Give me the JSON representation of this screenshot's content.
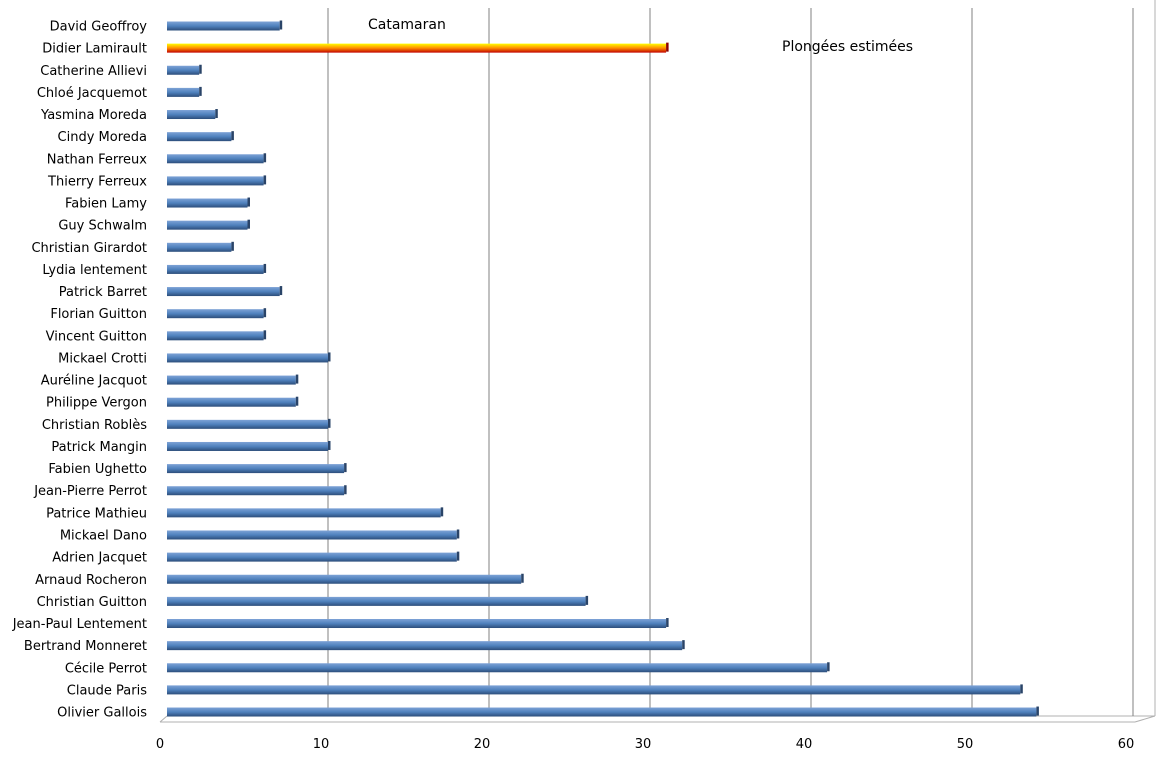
{
  "chart_data": {
    "type": "bar",
    "orientation": "horizontal",
    "categories": [
      "David Geoffroy",
      "Didier Lamirault",
      "Catherine Allievi",
      "Chloé Jacquemot",
      "Yasmina Moreda",
      "Cindy Moreda",
      "Nathan Ferreux",
      "Thierry Ferreux",
      "Fabien Lamy",
      "Guy Schwalm",
      "Christian Girardot",
      "Lydia lentement",
      "Patrick Barret",
      "Florian Guitton",
      "Vincent Guitton",
      "Mickael Crotti",
      "Auréline Jacquot",
      "Philippe Vergon",
      "Christian Roblès",
      "Patrick Mangin",
      "Fabien Ughetto",
      "Jean-Pierre Perrot",
      "Patrice Mathieu",
      "Mickael Dano",
      "Adrien Jacquet",
      "Arnaud Rocheron",
      "Christian Guitton",
      "Jean-Paul Lentement",
      "Bertrand Monneret",
      "Cécile Perrot",
      "Claude Paris",
      "Olivier Gallois"
    ],
    "values": [
      7,
      31,
      2,
      2,
      3,
      4,
      6,
      6,
      5,
      5,
      4,
      6,
      7,
      6,
      6,
      10,
      8,
      8,
      10,
      10,
      11,
      11,
      17,
      18,
      18,
      22,
      26,
      31,
      32,
      41,
      53,
      54
    ],
    "highlighted": [
      "Didier Lamirault"
    ],
    "xlim": [
      0,
      60
    ],
    "xticks": [
      0,
      10,
      20,
      30,
      40,
      50,
      60
    ],
    "grid": true,
    "annotations": [
      "Catamaran",
      "Plongées estimées"
    ],
    "colors": {
      "bar": "#4f81bd",
      "bar_highlight_top": "#ffff00",
      "bar_highlight_bottom": "#c00000",
      "grid": "#808080"
    }
  }
}
